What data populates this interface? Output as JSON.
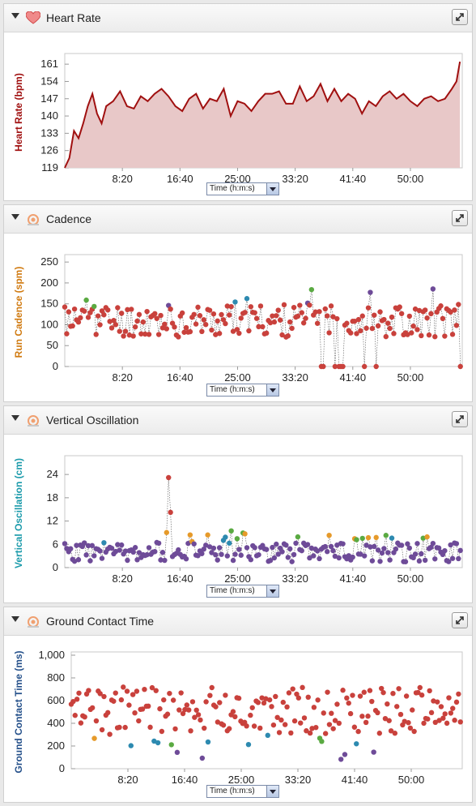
{
  "panels": [
    {
      "title": "Heart Rate",
      "icon": "heart-icon",
      "expanded": true
    },
    {
      "title": "Cadence",
      "icon": "runner-icon",
      "expanded": true
    },
    {
      "title": "Vertical Oscillation",
      "icon": "runner-icon",
      "expanded": true
    },
    {
      "title": "Ground Contact Time",
      "icon": "runner-icon",
      "expanded": true
    }
  ],
  "x_axis_select": "Time (h:m:s)",
  "x_ticks": [
    "8:20",
    "16:40",
    "25:00",
    "33:20",
    "41:40",
    "50:00"
  ],
  "colors": {
    "hr_line": "#a01010",
    "hr_fill": "#e8c8c8",
    "dot_red": "#c9413c",
    "dot_purple": "#6e4b98",
    "dot_blue": "#2d8ab0",
    "dot_green": "#5aaa42",
    "dot_orange": "#e69a2a",
    "cadence_label": "#d07a10",
    "vo_label": "#1a9aaa",
    "gct_label": "#24508a"
  },
  "chart_data": [
    {
      "type": "area",
      "ylabel": "Heart Rate (bpm)",
      "xlabel": "Time (h:m:s)",
      "yticks": [
        "119",
        "126",
        "133",
        "140",
        "147",
        "154",
        "161"
      ],
      "ylim": [
        119,
        164
      ],
      "xlim": [
        0,
        3450
      ],
      "x": [
        0,
        40,
        80,
        120,
        160,
        200,
        240,
        280,
        320,
        360,
        420,
        480,
        540,
        600,
        660,
        720,
        780,
        840,
        900,
        960,
        1020,
        1080,
        1140,
        1200,
        1260,
        1320,
        1380,
        1440,
        1500,
        1560,
        1620,
        1680,
        1740,
        1800,
        1860,
        1920,
        1980,
        2040,
        2100,
        2160,
        2220,
        2280,
        2340,
        2400,
        2460,
        2520,
        2580,
        2640,
        2700,
        2760,
        2820,
        2880,
        2940,
        3000,
        3060,
        3120,
        3180,
        3240,
        3300,
        3360,
        3400,
        3430
      ],
      "values": [
        119,
        123,
        134,
        131,
        137,
        144,
        149,
        141,
        137,
        144,
        146,
        150,
        144,
        143,
        148,
        146,
        149,
        151,
        148,
        144,
        142,
        147,
        149,
        143,
        147,
        146,
        151,
        140,
        146,
        145,
        142,
        146,
        149,
        149,
        150,
        145,
        145,
        152,
        146,
        148,
        153,
        146,
        151,
        146,
        149,
        147,
        141,
        146,
        144,
        148,
        150,
        147,
        149,
        146,
        144,
        147,
        148,
        146,
        147,
        151,
        154,
        162
      ]
    },
    {
      "type": "scatter",
      "ylabel": "Run Cadence (spm)",
      "xlabel": "Time (h:m:s)",
      "yticks": [
        "0",
        "50",
        "100",
        "150",
        "200",
        "250"
      ],
      "ylim": [
        0,
        260
      ],
      "xlim": [
        0,
        3450
      ]
    },
    {
      "type": "scatter",
      "ylabel": "Vertical Oscillation (cm)",
      "xlabel": "Time (h:m:s)",
      "yticks": [
        "0",
        "6",
        "12",
        "18",
        "24"
      ],
      "ylim": [
        0,
        28
      ],
      "xlim": [
        0,
        3450
      ]
    },
    {
      "type": "scatter",
      "ylabel": "Ground Contact Time (ms)",
      "xlabel": "Time (h:m:s)",
      "yticks": [
        "0",
        "200",
        "400",
        "600",
        "800",
        "1,000"
      ],
      "ylim": [
        0,
        1000
      ],
      "xlim": [
        0,
        3450
      ]
    }
  ]
}
